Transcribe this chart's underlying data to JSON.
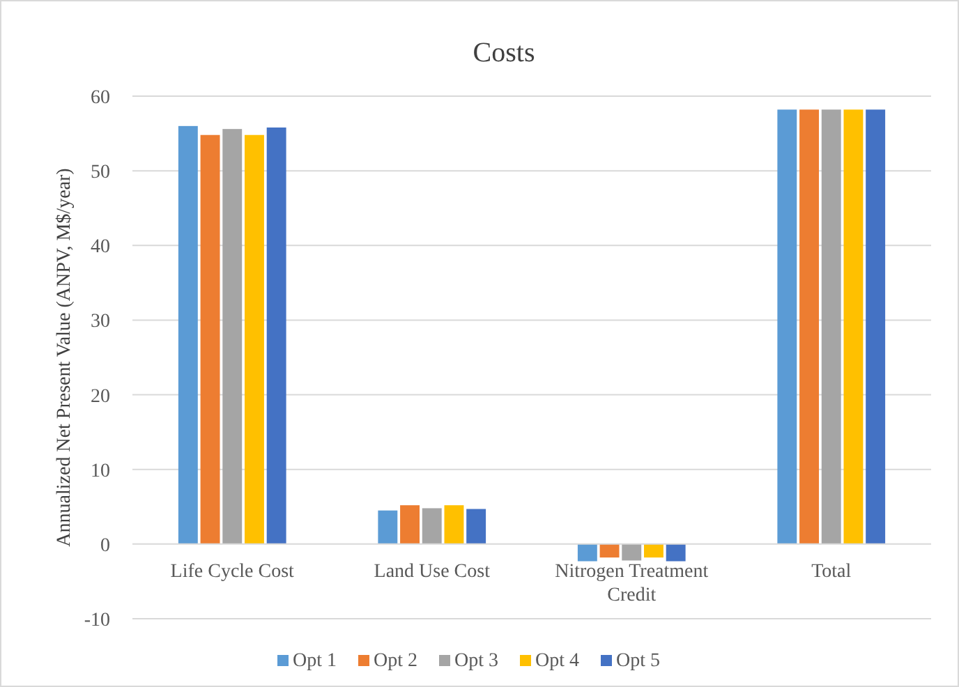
{
  "chart_data": {
    "type": "bar",
    "title": "Costs",
    "ylabel": "Annualized Net Present Value (ANPV, M$/year)",
    "categories": [
      "Life Cycle Cost",
      "Land Use Cost",
      "Nitrogen Treatment Credit",
      "Total"
    ],
    "series": [
      {
        "name": "Opt 1",
        "color": "#5b9bd5",
        "values": [
          56.0,
          4.5,
          -2.3,
          58.2
        ]
      },
      {
        "name": "Opt 2",
        "color": "#ed7d31",
        "values": [
          54.8,
          5.2,
          -1.8,
          58.2
        ]
      },
      {
        "name": "Opt 3",
        "color": "#a5a5a5",
        "values": [
          55.6,
          4.8,
          -2.2,
          58.2
        ]
      },
      {
        "name": "Opt 4",
        "color": "#ffc000",
        "values": [
          54.8,
          5.2,
          -1.8,
          58.2
        ]
      },
      {
        "name": "Opt 5",
        "color": "#4472c4",
        "values": [
          55.8,
          4.7,
          -2.3,
          58.2
        ]
      }
    ],
    "ylim": [
      -10,
      60
    ],
    "yticks": [
      -10,
      0,
      10,
      20,
      30,
      40,
      50,
      60
    ],
    "grid": "y",
    "legend": "bottom"
  }
}
